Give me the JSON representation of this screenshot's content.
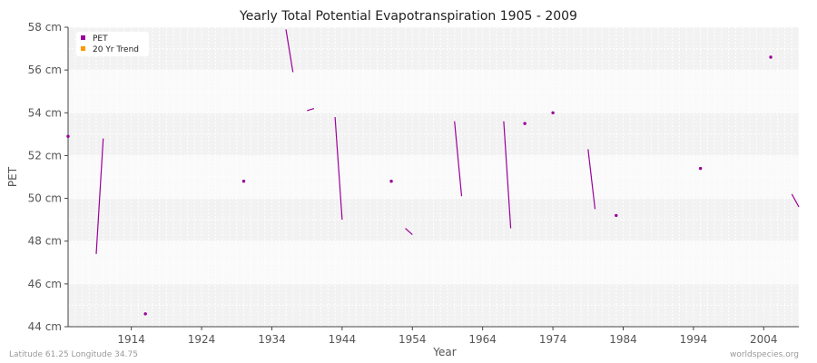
{
  "colors": {
    "pet": "#990099",
    "trend": "#ff9900",
    "band_dark": "#f2f2f2",
    "band_light": "#fafafa"
  },
  "chart_data": {
    "type": "line",
    "title": "Yearly Total Potential Evapotranspiration 1905 - 2009",
    "xlabel": "Year",
    "ylabel": "PET",
    "xlim": [
      1905,
      2009
    ],
    "ylim": [
      44,
      58
    ],
    "x_ticks": [
      1914,
      1924,
      1934,
      1944,
      1954,
      1964,
      1974,
      1984,
      1994,
      2004
    ],
    "y_ticks": [
      {
        "value": 44,
        "label": "44 cm"
      },
      {
        "value": 46,
        "label": "46 cm"
      },
      {
        "value": 48,
        "label": "48 cm"
      },
      {
        "value": 50,
        "label": "50 cm"
      },
      {
        "value": 52,
        "label": "52 cm"
      },
      {
        "value": 54,
        "label": "54 cm"
      },
      {
        "value": 56,
        "label": "56 cm"
      },
      {
        "value": 58,
        "label": "58 cm"
      }
    ],
    "grid": true,
    "legend_position": "top-left",
    "legend": [
      "PET",
      "20 Yr Trend"
    ],
    "series": [
      {
        "name": "PET",
        "points": [
          [
            1905,
            52.9
          ],
          [
            1909,
            47.4
          ],
          [
            1910,
            52.8
          ],
          [
            1916,
            44.6
          ],
          [
            1930,
            50.8
          ],
          [
            1936,
            57.9
          ],
          [
            1937,
            55.9
          ],
          [
            1939,
            54.1
          ],
          [
            1940,
            54.2
          ],
          [
            1943,
            53.8
          ],
          [
            1944,
            49.0
          ],
          [
            1951,
            50.8
          ],
          [
            1953,
            48.6
          ],
          [
            1954,
            48.3
          ],
          [
            1960,
            53.6
          ],
          [
            1961,
            50.1
          ],
          [
            1967,
            53.6
          ],
          [
            1968,
            48.6
          ],
          [
            1970,
            53.5
          ],
          [
            1974,
            54.0
          ],
          [
            1979,
            52.3
          ],
          [
            1980,
            49.5
          ],
          [
            1983,
            49.2
          ],
          [
            1995,
            51.4
          ],
          [
            2005,
            56.6
          ],
          [
            2008,
            50.2
          ],
          [
            2009,
            49.6
          ]
        ]
      },
      {
        "name": "20 Yr Trend",
        "points": []
      }
    ]
  },
  "footer": {
    "location": "Latitude 61.25 Longitude 34.75",
    "source": "worldspecies.org"
  }
}
